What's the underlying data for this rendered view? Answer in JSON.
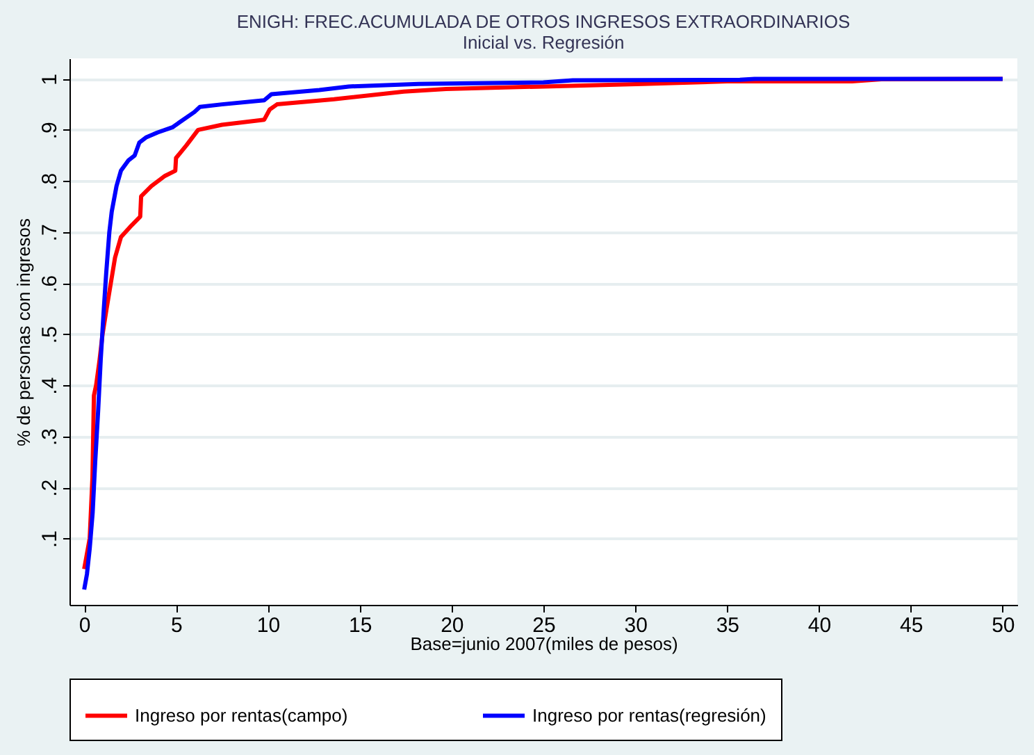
{
  "chart_data": {
    "type": "line",
    "title": "ENIGH: FREC.ACUMULADA DE OTROS INGRESOS EXTRAORDINARIOS",
    "subtitle": "Inicial vs. Regresión",
    "xlabel": "Base=junio 2007(miles de pesos)",
    "ylabel": "% de personas con ingresos",
    "xlim": [
      -0.8,
      50.8
    ],
    "xticks": [
      0,
      5,
      10,
      15,
      20,
      25,
      30,
      35,
      40,
      45,
      50
    ],
    "ylim": [
      -0.03,
      1.04
    ],
    "yticks": [
      {
        "value": 0.1,
        "label": ".1"
      },
      {
        "value": 0.2,
        "label": ".2"
      },
      {
        "value": 0.3,
        "label": ".3"
      },
      {
        "value": 0.4,
        "label": ".4"
      },
      {
        "value": 0.5,
        "label": ".5"
      },
      {
        "value": 0.6,
        "label": ".6"
      },
      {
        "value": 0.7,
        "label": ".7"
      },
      {
        "value": 0.8,
        "label": ".8"
      },
      {
        "value": 0.9,
        "label": ".9"
      },
      {
        "value": 1,
        "label": "1"
      }
    ],
    "grid": "y",
    "legend": "bottom",
    "marker": "none",
    "line_style": "solid",
    "series": [
      {
        "name": "Ingreso por rentas(campo)",
        "color": "#ff0000",
        "x": [
          0,
          0.3,
          0.45,
          0.53,
          0.65,
          0.84,
          1.0,
          1.22,
          1.45,
          1.68,
          2.0,
          2.5,
          3.05,
          3.1,
          3.66,
          4.4,
          4.96,
          5.0,
          5.57,
          6.2,
          7.5,
          9.8,
          10.1,
          10.5,
          12,
          13.6,
          17.4,
          19.7,
          25,
          30.4,
          35,
          41.8,
          43.4,
          50
        ],
        "values": [
          0.04,
          0.1,
          0.22,
          0.38,
          0.4,
          0.45,
          0.5,
          0.55,
          0.6,
          0.65,
          0.69,
          0.71,
          0.73,
          0.77,
          0.79,
          0.81,
          0.82,
          0.845,
          0.87,
          0.9,
          0.91,
          0.92,
          0.94,
          0.95,
          0.955,
          0.96,
          0.975,
          0.98,
          0.985,
          0.99,
          0.995,
          0.995,
          0.999,
          1.0
        ]
      },
      {
        "name": "Ingreso por rentas(regresión)",
        "color": "#0000ff",
        "x": [
          0,
          0.15,
          0.3,
          0.46,
          0.6,
          0.76,
          0.9,
          1.07,
          1.2,
          1.37,
          1.5,
          1.76,
          2.0,
          2.4,
          2.75,
          3.0,
          3.36,
          4.0,
          4.8,
          5.2,
          6.0,
          6.3,
          7.5,
          9.8,
          10.2,
          12.8,
          14.4,
          18.2,
          25,
          26.6,
          35.7,
          36.5,
          50
        ],
        "values": [
          0.0,
          0.03,
          0.08,
          0.15,
          0.25,
          0.35,
          0.45,
          0.55,
          0.62,
          0.7,
          0.74,
          0.79,
          0.82,
          0.84,
          0.85,
          0.875,
          0.885,
          0.895,
          0.905,
          0.915,
          0.935,
          0.945,
          0.95,
          0.958,
          0.97,
          0.978,
          0.985,
          0.99,
          0.993,
          0.997,
          0.998,
          1.0,
          1.0
        ]
      }
    ]
  }
}
